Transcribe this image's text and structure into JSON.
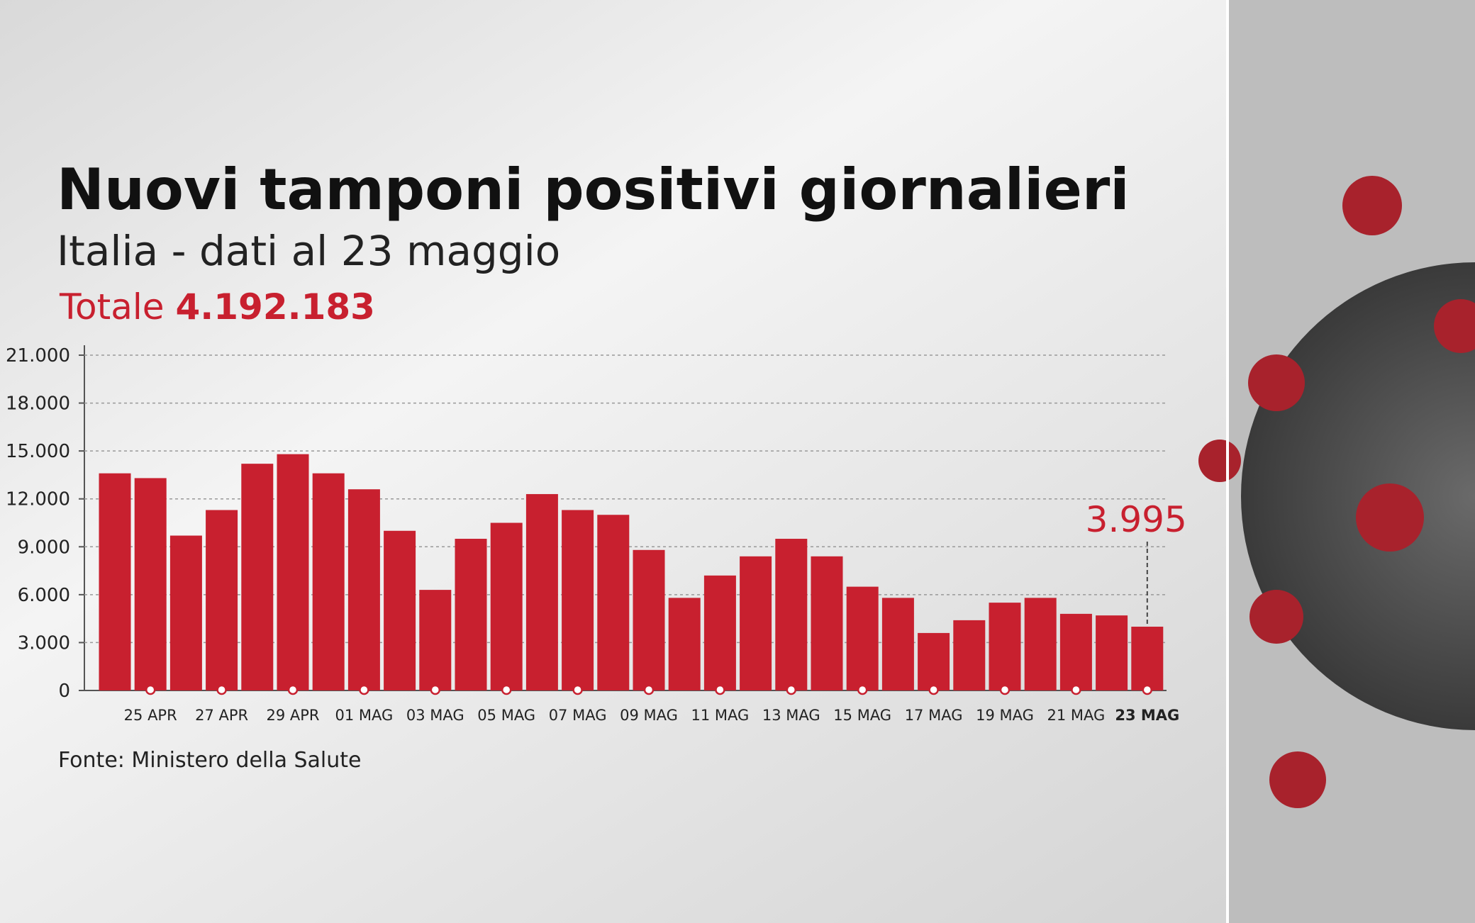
{
  "chart_data": {
    "type": "bar",
    "title": "Nuovi tamponi positivi giornalieri",
    "subtitle": "Italia - dati al 23 maggio",
    "total_label": "Totale",
    "total": "4.192.183",
    "source": "Fonte: Ministero della Salute",
    "categories": [
      null,
      "25 APR",
      null,
      "27 APR",
      null,
      "29 APR",
      null,
      "01 MAG",
      null,
      "03 MAG",
      null,
      "05 MAG",
      null,
      "07 MAG",
      null,
      "09 MAG",
      null,
      "11 MAG",
      null,
      "13 MAG",
      null,
      "15 MAG",
      null,
      "17 MAG",
      null,
      "19 MAG",
      null,
      "21 MAG",
      null,
      "23 MAG"
    ],
    "values": [
      13600,
      13300,
      9700,
      11300,
      14200,
      14800,
      13600,
      12600,
      10000,
      6300,
      9500,
      10500,
      12300,
      11300,
      11000,
      8800,
      5800,
      7200,
      8400,
      9500,
      8400,
      6500,
      5800,
      3600,
      4400,
      5500,
      5800,
      4800,
      4700,
      3995
    ],
    "value_labels": [
      null,
      null,
      null,
      null,
      null,
      null,
      null,
      null,
      null,
      null,
      null,
      null,
      null,
      null,
      null,
      null,
      null,
      null,
      null,
      null,
      null,
      null,
      null,
      null,
      null,
      null,
      null,
      null,
      null,
      "3.995"
    ],
    "color": "#c8202f",
    "ylim": [
      0,
      21000
    ],
    "yticks": [
      0,
      {
        "value": 3000,
        "label": "3.000"
      },
      {
        "value": 6000,
        "label": "6.000"
      },
      {
        "value": 9000,
        "label": "9.000"
      },
      {
        "value": 12000,
        "label": "12.000"
      },
      {
        "value": 15000,
        "label": "15.000"
      },
      {
        "value": 18000,
        "label": "18.000"
      },
      {
        "value": 21000,
        "label": "21.000"
      }
    ],
    "grid": true
  }
}
